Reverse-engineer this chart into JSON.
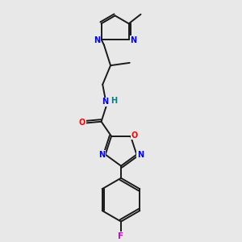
{
  "bg_color": "#e8e8e8",
  "bond_color": "#1a1a1a",
  "N_color": "#0000ff",
  "O_color": "#ff0000",
  "F_color": "#cc00cc",
  "H_color": "#008080",
  "figsize": [
    3.0,
    3.0
  ],
  "dpi": 100,
  "xlim": [
    -2.5,
    2.5
  ],
  "ylim": [
    -4.5,
    4.5
  ]
}
